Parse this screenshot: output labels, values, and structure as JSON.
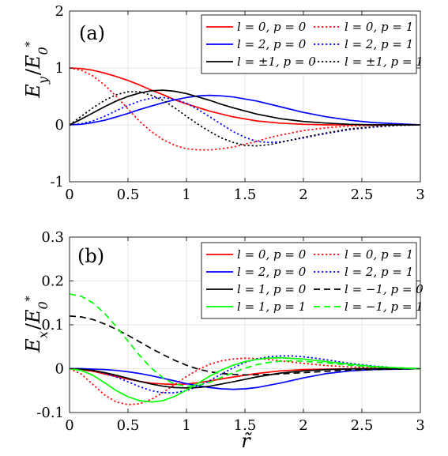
{
  "chart_data": [
    {
      "type": "line",
      "panel_label": "(a)",
      "ylabel": "E_y / E_0^*",
      "ylabel_parts": {
        "main": "E",
        "sub": "y",
        "sep": "/",
        "main2": "E",
        "sub2": "0",
        "sup2": "*"
      },
      "xlim": [
        0,
        3
      ],
      "ylim": [
        -1,
        2
      ],
      "xticks": [
        "0",
        "0.5",
        "1",
        "1.5",
        "2",
        "2.5",
        "3"
      ],
      "xtick_values": [
        0,
        0.5,
        1,
        1.5,
        2,
        2.5,
        3
      ],
      "yticks": [
        "-1",
        "0",
        "1",
        "2"
      ],
      "ytick_values": [
        -1,
        0,
        1,
        2
      ],
      "grid": true,
      "legend_position": "top-right",
      "legend_columns": 2,
      "colors": {
        "red": "#ff0000",
        "blue": "#0000ff",
        "black": "#000000"
      },
      "series": [
        {
          "name": "l = 0, p = 0",
          "color": "#ff0000",
          "style": "solid",
          "x": [
            0,
            0.1,
            0.2,
            0.3,
            0.4,
            0.5,
            0.6,
            0.7,
            0.8,
            0.9,
            1.0,
            1.2,
            1.4,
            1.6,
            1.8,
            2.0,
            2.2,
            2.5,
            2.8,
            3.0
          ],
          "y": [
            1.0,
            0.99,
            0.96,
            0.91,
            0.85,
            0.78,
            0.7,
            0.61,
            0.53,
            0.44,
            0.37,
            0.24,
            0.14,
            0.07,
            0.03,
            0.01,
            0.0,
            0.0,
            0.0,
            0.0
          ]
        },
        {
          "name": "l = 0, p = 1",
          "color": "#ff0000",
          "style": "dotted",
          "x": [
            0,
            0.1,
            0.2,
            0.3,
            0.4,
            0.5,
            0.6,
            0.7,
            0.8,
            0.9,
            1.0,
            1.1,
            1.2,
            1.3,
            1.4,
            1.5,
            1.6,
            1.7,
            1.8,
            2.0,
            2.2,
            2.4,
            2.6,
            2.8,
            3.0
          ],
          "y": [
            1.0,
            0.96,
            0.86,
            0.7,
            0.5,
            0.28,
            0.06,
            -0.12,
            -0.26,
            -0.36,
            -0.42,
            -0.44,
            -0.44,
            -0.42,
            -0.39,
            -0.34,
            -0.29,
            -0.23,
            -0.18,
            -0.1,
            -0.05,
            -0.02,
            -0.01,
            0.0,
            0.0
          ]
        },
        {
          "name": "l = 2, p = 0",
          "color": "#0000ff",
          "style": "solid",
          "x": [
            0,
            0.1,
            0.2,
            0.3,
            0.4,
            0.5,
            0.6,
            0.7,
            0.8,
            0.9,
            1.0,
            1.1,
            1.2,
            1.3,
            1.4,
            1.6,
            1.8,
            2.0,
            2.2,
            2.4,
            2.6,
            2.8,
            3.0
          ],
          "y": [
            0.0,
            0.01,
            0.04,
            0.08,
            0.14,
            0.2,
            0.27,
            0.33,
            0.39,
            0.44,
            0.48,
            0.51,
            0.52,
            0.51,
            0.49,
            0.42,
            0.32,
            0.22,
            0.14,
            0.08,
            0.04,
            0.02,
            0.0
          ]
        },
        {
          "name": "l = 2, p = 1",
          "color": "#0000ff",
          "style": "dotted",
          "x": [
            0,
            0.1,
            0.2,
            0.3,
            0.4,
            0.5,
            0.6,
            0.7,
            0.8,
            0.9,
            1.0,
            1.1,
            1.2,
            1.3,
            1.4,
            1.5,
            1.6,
            1.7,
            1.8,
            2.0,
            2.2,
            2.4,
            2.6,
            2.8,
            3.0
          ],
          "y": [
            0.0,
            0.02,
            0.07,
            0.15,
            0.25,
            0.34,
            0.42,
            0.47,
            0.48,
            0.45,
            0.38,
            0.27,
            0.14,
            0.01,
            -0.12,
            -0.22,
            -0.29,
            -0.31,
            -0.3,
            -0.23,
            -0.15,
            -0.08,
            -0.04,
            -0.01,
            0.0
          ]
        },
        {
          "name": "l = ±1, p = 0",
          "color": "#000000",
          "style": "solid",
          "x": [
            0,
            0.1,
            0.2,
            0.3,
            0.4,
            0.5,
            0.6,
            0.7,
            0.8,
            0.9,
            1.0,
            1.1,
            1.2,
            1.3,
            1.4,
            1.6,
            1.8,
            2.0,
            2.2,
            2.4,
            2.6,
            2.8,
            3.0
          ],
          "y": [
            0.0,
            0.1,
            0.21,
            0.32,
            0.42,
            0.5,
            0.56,
            0.6,
            0.61,
            0.59,
            0.55,
            0.49,
            0.43,
            0.36,
            0.3,
            0.19,
            0.11,
            0.06,
            0.03,
            0.01,
            0.0,
            0.0,
            0.0
          ]
        },
        {
          "name": "l = ±1, p = 1",
          "color": "#000000",
          "style": "dotted",
          "x": [
            0,
            0.1,
            0.2,
            0.3,
            0.4,
            0.5,
            0.6,
            0.7,
            0.8,
            0.9,
            1.0,
            1.1,
            1.2,
            1.3,
            1.4,
            1.5,
            1.6,
            1.7,
            1.8,
            2.0,
            2.2,
            2.4,
            2.6,
            2.8,
            3.0
          ],
          "y": [
            0.0,
            0.15,
            0.3,
            0.43,
            0.53,
            0.58,
            0.58,
            0.52,
            0.43,
            0.3,
            0.15,
            0.01,
            -0.12,
            -0.23,
            -0.31,
            -0.36,
            -0.37,
            -0.35,
            -0.31,
            -0.22,
            -0.14,
            -0.07,
            -0.03,
            -0.01,
            0.0
          ]
        }
      ]
    },
    {
      "type": "line",
      "panel_label": "(b)",
      "ylabel": "E_x / E_0^*",
      "ylabel_parts": {
        "main": "E",
        "sub": "x",
        "sep": "/",
        "main2": "E",
        "sub2": "0",
        "sup2": "*"
      },
      "xlabel": "r̃",
      "xlim": [
        0,
        3
      ],
      "ylim": [
        -0.1,
        0.3
      ],
      "xticks": [
        "0",
        "0.5",
        "1",
        "1.5",
        "2",
        "2.5",
        "3"
      ],
      "xtick_values": [
        0,
        0.5,
        1,
        1.5,
        2,
        2.5,
        3
      ],
      "yticks": [
        "-0.1",
        "0",
        "0.1",
        "0.2",
        "0.3"
      ],
      "ytick_values": [
        -0.1,
        0,
        0.1,
        0.2,
        0.3
      ],
      "grid": true,
      "legend_position": "top-right",
      "legend_columns": 2,
      "colors": {
        "red": "#ff0000",
        "blue": "#0000ff",
        "black": "#000000",
        "green": "#00ff00"
      },
      "series": [
        {
          "name": "l = 0, p = 0",
          "color": "#ff0000",
          "style": "solid",
          "x": [
            0,
            0.1,
            0.2,
            0.3,
            0.4,
            0.5,
            0.6,
            0.7,
            0.8,
            0.9,
            1.0,
            1.1,
            1.2,
            1.4,
            1.6,
            1.8,
            2.0,
            2.2,
            2.5,
            2.8,
            3.0
          ],
          "y": [
            0.0,
            -0.002,
            -0.006,
            -0.012,
            -0.018,
            -0.024,
            -0.029,
            -0.033,
            -0.035,
            -0.036,
            -0.035,
            -0.032,
            -0.028,
            -0.019,
            -0.011,
            -0.005,
            -0.002,
            -0.001,
            0.0,
            0.0,
            0.0
          ]
        },
        {
          "name": "l = 0, p = 1",
          "color": "#ff0000",
          "style": "dotted",
          "x": [
            0,
            0.1,
            0.2,
            0.3,
            0.4,
            0.5,
            0.6,
            0.7,
            0.8,
            0.9,
            1.0,
            1.1,
            1.2,
            1.3,
            1.4,
            1.5,
            1.6,
            1.7,
            1.8,
            2.0,
            2.2,
            2.4,
            2.6,
            2.8,
            3.0
          ],
          "y": [
            0.0,
            -0.012,
            -0.036,
            -0.06,
            -0.076,
            -0.082,
            -0.08,
            -0.07,
            -0.054,
            -0.036,
            -0.018,
            -0.002,
            0.01,
            0.018,
            0.022,
            0.024,
            0.023,
            0.021,
            0.018,
            0.012,
            0.007,
            0.004,
            0.002,
            0.001,
            0.0
          ]
        },
        {
          "name": "l = 2, p = 0",
          "color": "#0000ff",
          "style": "solid",
          "x": [
            0,
            0.1,
            0.2,
            0.3,
            0.4,
            0.5,
            0.6,
            0.7,
            0.8,
            0.9,
            1.0,
            1.1,
            1.2,
            1.3,
            1.4,
            1.5,
            1.6,
            1.8,
            2.0,
            2.2,
            2.4,
            2.6,
            2.8,
            3.0
          ],
          "y": [
            0.0,
            0.0,
            -0.001,
            -0.002,
            -0.004,
            -0.007,
            -0.011,
            -0.016,
            -0.022,
            -0.028,
            -0.034,
            -0.039,
            -0.043,
            -0.046,
            -0.047,
            -0.046,
            -0.043,
            -0.033,
            -0.021,
            -0.011,
            -0.005,
            -0.002,
            -0.001,
            0.0
          ]
        },
        {
          "name": "l = 2, p = 1",
          "color": "#0000ff",
          "style": "dotted",
          "x": [
            0,
            0.1,
            0.2,
            0.3,
            0.4,
            0.5,
            0.6,
            0.7,
            0.8,
            0.9,
            1.0,
            1.1,
            1.2,
            1.3,
            1.4,
            1.5,
            1.6,
            1.7,
            1.8,
            1.9,
            2.0,
            2.1,
            2.2,
            2.4,
            2.6,
            2.8,
            3.0
          ],
          "y": [
            0.0,
            -0.001,
            -0.004,
            -0.01,
            -0.019,
            -0.03,
            -0.041,
            -0.05,
            -0.055,
            -0.055,
            -0.05,
            -0.04,
            -0.027,
            -0.012,
            0.002,
            0.014,
            0.022,
            0.027,
            0.029,
            0.029,
            0.027,
            0.024,
            0.02,
            0.012,
            0.006,
            0.002,
            0.0
          ]
        },
        {
          "name": "l = 1, p = 0",
          "color": "#000000",
          "style": "solid",
          "x": [
            0,
            0.1,
            0.2,
            0.3,
            0.4,
            0.5,
            0.6,
            0.7,
            0.8,
            0.9,
            1.0,
            1.1,
            1.2,
            1.4,
            1.6,
            1.8,
            2.0,
            2.2,
            2.5,
            2.8,
            3.0
          ],
          "y": [
            0.0,
            -0.001,
            -0.004,
            -0.009,
            -0.015,
            -0.022,
            -0.029,
            -0.035,
            -0.04,
            -0.043,
            -0.044,
            -0.043,
            -0.04,
            -0.03,
            -0.019,
            -0.01,
            -0.005,
            -0.002,
            0.0,
            0.0,
            0.0
          ]
        },
        {
          "name": "l = −1, p = 0",
          "color": "#000000",
          "style": "dashed",
          "x": [
            0,
            0.1,
            0.2,
            0.3,
            0.4,
            0.5,
            0.6,
            0.7,
            0.8,
            0.9,
            1.0,
            1.1,
            1.2,
            1.3,
            1.4,
            1.5,
            1.6,
            1.8,
            2.0,
            2.2,
            2.4,
            2.6,
            2.8,
            3.0
          ],
          "y": [
            0.12,
            0.118,
            0.112,
            0.102,
            0.09,
            0.076,
            0.061,
            0.046,
            0.032,
            0.019,
            0.008,
            -0.001,
            -0.007,
            -0.011,
            -0.013,
            -0.014,
            -0.014,
            -0.012,
            -0.009,
            -0.006,
            -0.003,
            -0.002,
            -0.001,
            0.0
          ]
        },
        {
          "name": "l = 1, p = 1",
          "color": "#00ff00",
          "style": "solid",
          "x": [
            0,
            0.1,
            0.2,
            0.3,
            0.4,
            0.5,
            0.6,
            0.7,
            0.8,
            0.9,
            1.0,
            1.1,
            1.2,
            1.3,
            1.4,
            1.5,
            1.6,
            1.7,
            1.8,
            2.0,
            2.2,
            2.4,
            2.6,
            2.8,
            3.0
          ],
          "y": [
            0.0,
            -0.004,
            -0.015,
            -0.032,
            -0.05,
            -0.064,
            -0.073,
            -0.076,
            -0.073,
            -0.063,
            -0.049,
            -0.033,
            -0.017,
            -0.003,
            0.008,
            0.016,
            0.021,
            0.024,
            0.025,
            0.022,
            0.016,
            0.01,
            0.005,
            0.002,
            0.0
          ]
        },
        {
          "name": "l = −1, p = 1",
          "color": "#00ff00",
          "style": "dashed",
          "x": [
            0,
            0.1,
            0.2,
            0.3,
            0.4,
            0.5,
            0.6,
            0.7,
            0.8,
            0.9,
            1.0,
            1.1,
            1.2,
            1.3,
            1.4,
            1.5,
            1.6,
            1.7,
            1.8,
            1.9,
            2.0,
            2.2,
            2.4,
            2.6,
            2.8,
            3.0
          ],
          "y": [
            0.17,
            0.165,
            0.15,
            0.126,
            0.096,
            0.063,
            0.03,
            0.001,
            -0.021,
            -0.035,
            -0.04,
            -0.038,
            -0.031,
            -0.02,
            -0.009,
            0.001,
            0.009,
            0.014,
            0.017,
            0.018,
            0.017,
            0.013,
            0.008,
            0.004,
            0.002,
            0.0
          ]
        }
      ]
    }
  ]
}
